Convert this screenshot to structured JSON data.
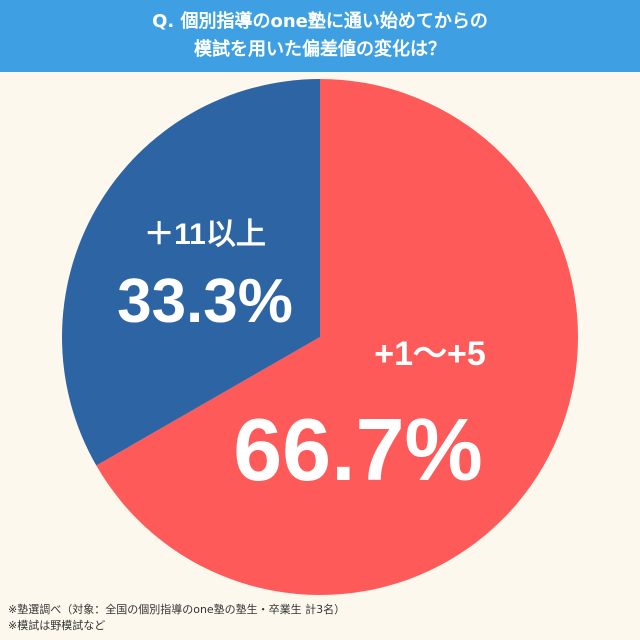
{
  "header": {
    "line1": "Q. 個別指導のone塾に通い始めてからの",
    "line2": "模試を用いた偏差値の変化は？"
  },
  "colors": {
    "header_bg": "#3ea0e3",
    "slice_large": "#ff5a5a",
    "slice_small": "#2d64a3",
    "background": "#fdf8ee"
  },
  "chart_data": {
    "type": "pie",
    "slices": [
      {
        "label": "+1〜+5",
        "value": 66.7,
        "value_label": "66.7%",
        "color": "#ff5a5a"
      },
      {
        "label": "＋11以上",
        "value": 33.3,
        "value_label": "33.3%",
        "color": "#2d64a3"
      }
    ],
    "start": "12 o'clock",
    "direction": "clockwise"
  },
  "footer": {
    "note1": "※塾選調べ（対象：全国の個別指導のone塾の塾生・卒業生 計3名）",
    "note2": "※模試は野模試など"
  }
}
